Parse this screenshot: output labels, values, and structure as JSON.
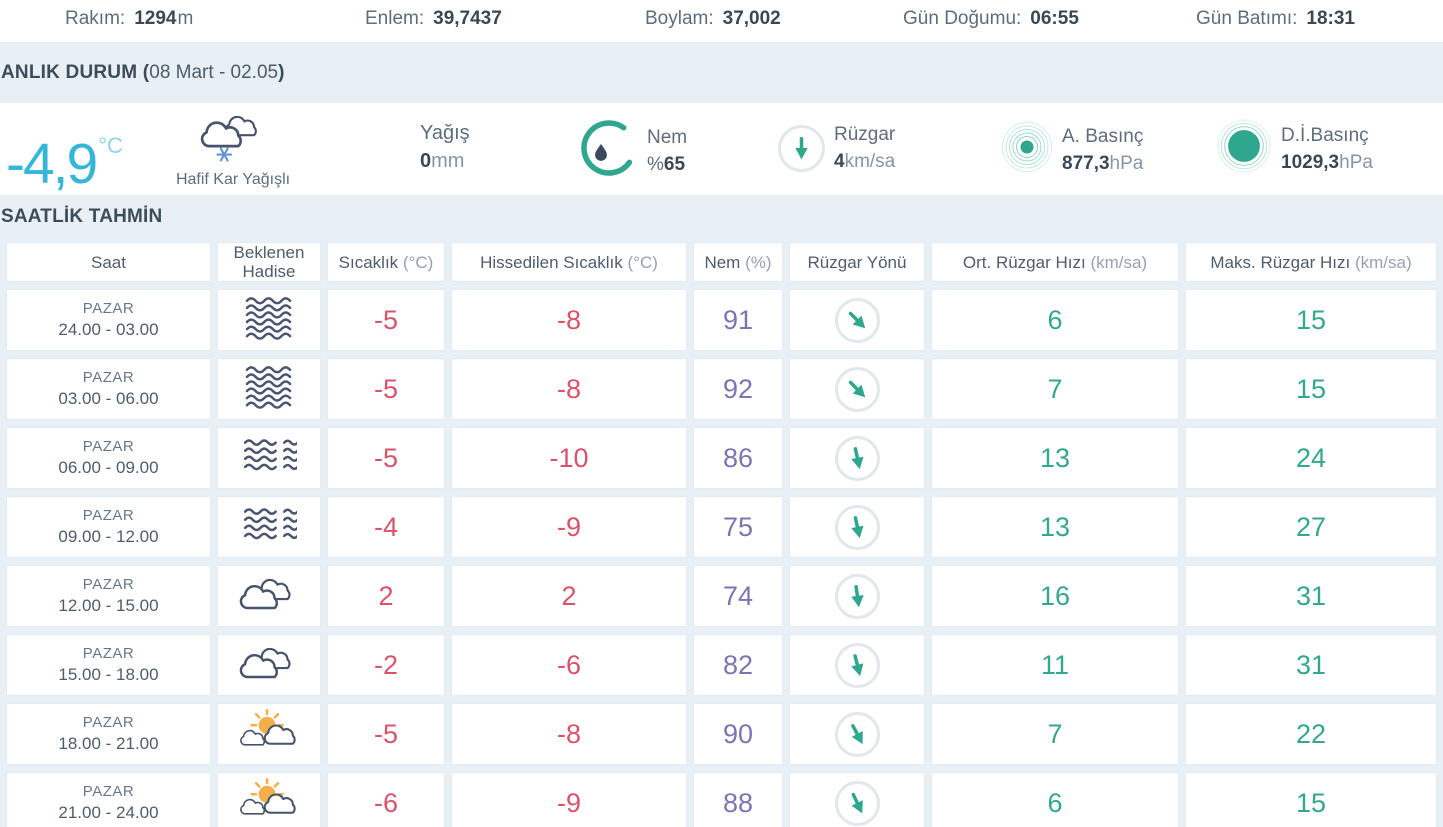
{
  "topbar": {
    "items": [
      {
        "label": "Rakım:",
        "value": "1294",
        "suffix": "m"
      },
      {
        "label": "Enlem:",
        "value": "39,7437",
        "suffix": ""
      },
      {
        "label": "Boylam:",
        "value": "37,002",
        "suffix": ""
      },
      {
        "label": "Gün Doğumu:",
        "value": "06:55",
        "suffix": ""
      },
      {
        "label": "Gün Batımı:",
        "value": "18:31",
        "suffix": ""
      }
    ]
  },
  "current": {
    "section_title": "ANLIK DURUM (",
    "section_date": "08 Mart - 02.05",
    "section_close": ")",
    "temperature": "-4,9",
    "temperature_unit": "°C",
    "condition": "Hafif Kar Yağışlı",
    "precip_label": "Yağış",
    "precip_value": "0",
    "precip_unit": "mm",
    "humidity_label": "Nem",
    "humidity_prefix": "%",
    "humidity_value": "65",
    "wind_label": "Rüzgar",
    "wind_value": "4",
    "wind_unit": "km/sa",
    "pressure_label": "A. Basınç",
    "pressure_value": "877,3",
    "pressure_unit": "hPa",
    "sea_pressure_label": "D.İ.Basınç",
    "sea_pressure_value": "1029,3",
    "sea_pressure_unit": "hPa"
  },
  "hourly": {
    "section_title": "SAATLİK TAHMİN",
    "columns": [
      {
        "label": "Saat",
        "unit": ""
      },
      {
        "label": "Beklenen Hadise",
        "unit": ""
      },
      {
        "label": "Sıcaklık",
        "unit": "(°C)"
      },
      {
        "label": "Hissedilen Sıcaklık",
        "unit": "(°C)"
      },
      {
        "label": "Nem",
        "unit": "(%)"
      },
      {
        "label": "Rüzgar Yönü",
        "unit": ""
      },
      {
        "label": "Ort. Rüzgar Hızı",
        "unit": "(km/sa)"
      },
      {
        "label": "Maks. Rüzgar Hızı",
        "unit": "(km/sa)"
      }
    ],
    "rows": [
      {
        "day": "PAZAR",
        "hours": "24.00 - 03.00",
        "icon": "fog-dense",
        "temp": "-5",
        "feels": "-8",
        "humidity": "91",
        "wind_deg": -45,
        "avg_wind": "6",
        "max_wind": "15"
      },
      {
        "day": "PAZAR",
        "hours": "03.00 - 06.00",
        "icon": "fog-dense",
        "temp": "-5",
        "feels": "-8",
        "humidity": "92",
        "wind_deg": -45,
        "avg_wind": "7",
        "max_wind": "15"
      },
      {
        "day": "PAZAR",
        "hours": "06.00 - 09.00",
        "icon": "fog-light",
        "temp": "-5",
        "feels": "-10",
        "humidity": "86",
        "wind_deg": -12,
        "avg_wind": "13",
        "max_wind": "24"
      },
      {
        "day": "PAZAR",
        "hours": "09.00 - 12.00",
        "icon": "fog-light",
        "temp": "-4",
        "feels": "-9",
        "humidity": "75",
        "wind_deg": -12,
        "avg_wind": "13",
        "max_wind": "27"
      },
      {
        "day": "PAZAR",
        "hours": "12.00 - 15.00",
        "icon": "cloudy",
        "temp": "2",
        "feels": "2",
        "humidity": "74",
        "wind_deg": -8,
        "avg_wind": "16",
        "max_wind": "31"
      },
      {
        "day": "PAZAR",
        "hours": "15.00 - 18.00",
        "icon": "cloudy",
        "temp": "-2",
        "feels": "-6",
        "humidity": "82",
        "wind_deg": -14,
        "avg_wind": "11",
        "max_wind": "31"
      },
      {
        "day": "PAZAR",
        "hours": "18.00 - 21.00",
        "icon": "sun-cloud",
        "temp": "-5",
        "feels": "-8",
        "humidity": "90",
        "wind_deg": -28,
        "avg_wind": "7",
        "max_wind": "22"
      },
      {
        "day": "PAZAR",
        "hours": "21.00 - 24.00",
        "icon": "sun-cloud",
        "temp": "-6",
        "feels": "-9",
        "humidity": "88",
        "wind_deg": -25,
        "avg_wind": "6",
        "max_wind": "15"
      }
    ]
  },
  "colors": {
    "accent_cyan": "#35b6d7",
    "accent_teal": "#2fa78e",
    "temp_red": "#d8546a",
    "humidity_purple": "#7e74b2",
    "band_bg": "#e9f0f5",
    "text_dark": "#3a4856",
    "text_gray": "#5d6d7c"
  }
}
